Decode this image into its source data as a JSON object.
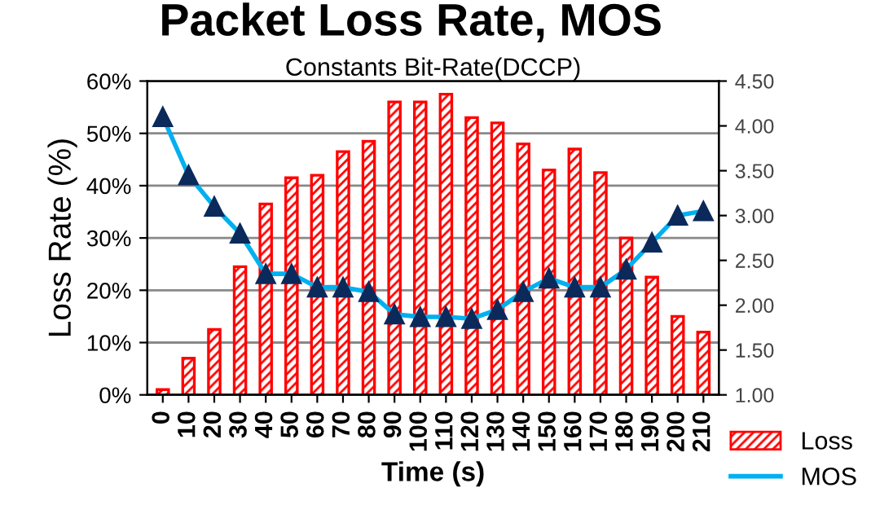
{
  "chart_data": {
    "type": "bar",
    "title": "Packet Loss Rate, MOS",
    "subtitle": "Constants Bit-Rate(DCCP)",
    "xlabel": "Time (s)",
    "ylabel": "Loss Rate (%)",
    "categories": [
      "0",
      "10",
      "20",
      "30",
      "40",
      "50",
      "60",
      "70",
      "80",
      "90",
      "100",
      "110",
      "120",
      "130",
      "140",
      "150",
      "160",
      "170",
      "180",
      "190",
      "200",
      "210"
    ],
    "series": [
      {
        "name": "Loss",
        "color": "#ff0000",
        "values": [
          1,
          7,
          12.5,
          24.5,
          36.5,
          41.5,
          42,
          46.5,
          48.5,
          56,
          56,
          57.5,
          53,
          52,
          48,
          43,
          47,
          42.5,
          30,
          22.5,
          15,
          12
        ]
      },
      {
        "name": "MOS",
        "type": "line",
        "axis": "y2",
        "color": "#00b0f0",
        "marker": "triangle",
        "values": [
          4.1,
          3.45,
          3.1,
          2.8,
          2.35,
          2.35,
          2.2,
          2.2,
          2.15,
          1.9,
          1.87,
          1.87,
          1.85,
          1.95,
          2.15,
          2.3,
          2.2,
          2.2,
          2.4,
          2.7,
          3.0,
          3.05
        ]
      }
    ],
    "ylim": [
      0,
      60
    ],
    "yticks": [
      {
        "value": 0,
        "label": "0%"
      },
      {
        "value": 10,
        "label": "10%"
      },
      {
        "value": 20,
        "label": "20%"
      },
      {
        "value": 30,
        "label": "30%"
      },
      {
        "value": 40,
        "label": "40%"
      },
      {
        "value": 50,
        "label": "50%"
      },
      {
        "value": 60,
        "label": "60%"
      }
    ],
    "y2lim": [
      1,
      4.5
    ],
    "y2ticks": [
      {
        "value": 1,
        "label": "1.00"
      },
      {
        "value": 1.5,
        "label": "1.50"
      },
      {
        "value": 2,
        "label": "2.00"
      },
      {
        "value": 2.5,
        "label": "2.50"
      },
      {
        "value": 3,
        "label": "3.00"
      },
      {
        "value": 3.5,
        "label": "3.50"
      },
      {
        "value": 4,
        "label": "4.00"
      },
      {
        "value": 4.5,
        "label": "4.50"
      }
    ],
    "grid": "y",
    "legend": "right"
  }
}
